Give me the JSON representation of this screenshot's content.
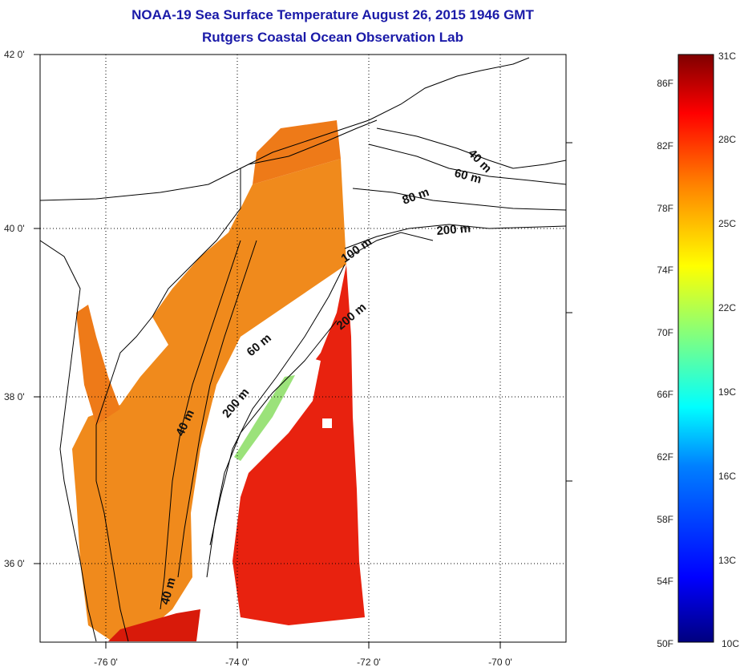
{
  "header": {
    "title": "NOAA-19 Sea Surface Temperature August 26, 2015 1946 GMT",
    "subtitle": "Rutgers Coastal Ocean Observation Lab"
  },
  "map": {
    "lon_ticks": [
      "-76 0'",
      "-74 0'",
      "-72 0'",
      "-70 0'"
    ],
    "lat_ticks": [
      "42 0'",
      "40 0'",
      "38 0'",
      "36 0'"
    ],
    "contour_labels": [
      "40 m",
      "60 m",
      "80 m",
      "200 m",
      "100 m",
      "200 m",
      "60 m",
      "200 m",
      "40 m",
      "40 m"
    ]
  },
  "colorbar": {
    "fahrenheit_labels": [
      "86F",
      "82F",
      "78F",
      "74F",
      "70F",
      "66F",
      "62F",
      "58F",
      "54F",
      "50F"
    ],
    "celsius_labels": [
      "31C",
      "28C",
      "25C",
      "22C",
      "19C",
      "16C",
      "13C",
      "10C"
    ],
    "colors": [
      "#00007f",
      "#0000ff",
      "#0080ff",
      "#00ffff",
      "#80ff80",
      "#ffff00",
      "#ff8000",
      "#ff0000",
      "#7f0000"
    ]
  }
}
